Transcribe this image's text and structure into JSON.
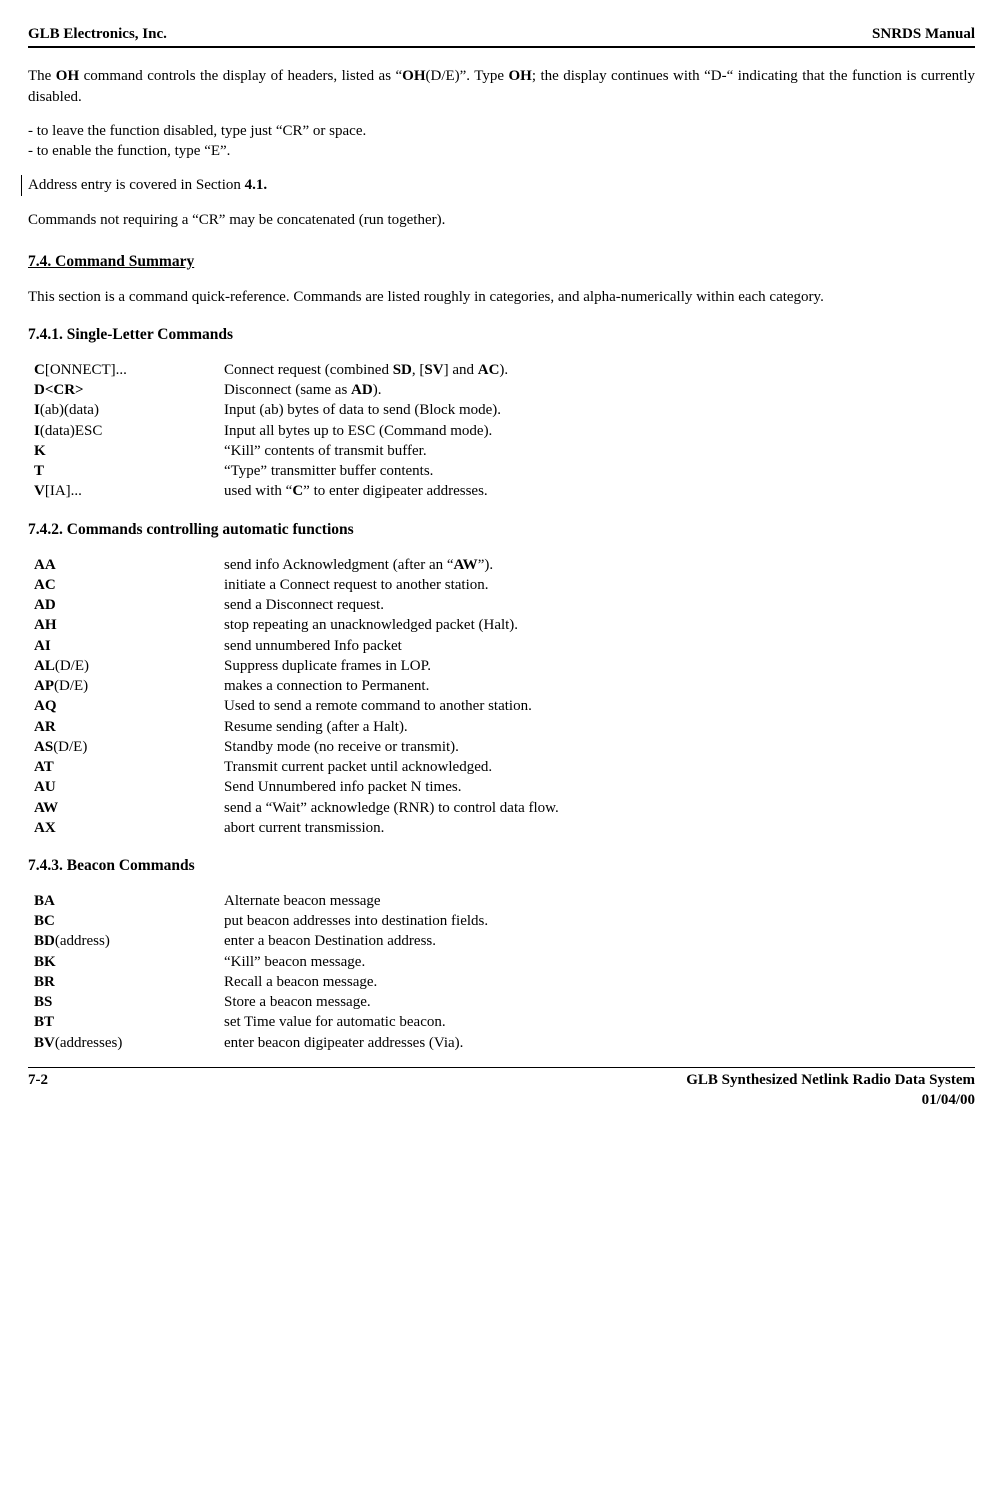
{
  "header": {
    "left": "GLB Electronics, Inc.",
    "right": "SNRDS  Manual"
  },
  "footer": {
    "left": "7-2",
    "right1": "GLB Synthesized Netlink Radio Data System",
    "right2": "01/04/00"
  },
  "intro": {
    "p1_a": "The ",
    "p1_b": "OH",
    "p1_c": " command controls the display of headers, listed as “",
    "p1_d": "OH",
    "p1_e": "(D/E)”. Type ",
    "p1_f": "OH",
    "p1_g": "; the display continues with “D-“ indicating that the function is currently disabled.",
    "l1": "- to leave the function disabled, type just “CR” or space.",
    "l2": "- to enable the function, type “E”.",
    "p2_a": "Address entry is covered in Section ",
    "p2_b": "4.1.",
    "p3": "Commands not requiring a “CR” may be concatenated (run together)."
  },
  "s74": {
    "title": "7.4. Command Summary",
    "p": "This section is a command quick-reference. Commands are listed roughly in categories, and alpha-numerically within each category."
  },
  "s741": {
    "title": "7.4.1.  Single-Letter Commands",
    "rows": [
      {
        "cmd_b": "C",
        "cmd_r": "[ONNECT]...",
        "desc_a": "Connect request (combined ",
        "desc_bold1": "SD",
        "desc_b": ", [",
        "desc_bold2": "SV",
        "desc_c": "] and ",
        "desc_bold3": "AC",
        "desc_d": ")."
      },
      {
        "cmd_b": "D<CR>",
        "cmd_r": "",
        "desc_a": "Disconnect (same as ",
        "desc_bold1": "AD",
        "desc_b": ").",
        "desc_bold2": "",
        "desc_c": "",
        "desc_bold3": "",
        "desc_d": ""
      },
      {
        "cmd_b": "I",
        "cmd_r": "(ab)(data)",
        "desc_a": "Input (ab) bytes of data to send (Block mode).",
        "desc_bold1": "",
        "desc_b": "",
        "desc_bold2": "",
        "desc_c": "",
        "desc_bold3": "",
        "desc_d": ""
      },
      {
        "cmd_b": "I",
        "cmd_r": "(data)ESC",
        "desc_a": "Input all bytes up to ESC (Command mode).",
        "desc_bold1": "",
        "desc_b": "",
        "desc_bold2": "",
        "desc_c": "",
        "desc_bold3": "",
        "desc_d": ""
      },
      {
        "cmd_b": "K",
        "cmd_r": "",
        "desc_a": "“Kill” contents of transmit buffer.",
        "desc_bold1": "",
        "desc_b": "",
        "desc_bold2": "",
        "desc_c": "",
        "desc_bold3": "",
        "desc_d": ""
      },
      {
        "cmd_b": "T",
        "cmd_r": "",
        "desc_a": "“Type” transmitter buffer contents.",
        "desc_bold1": "",
        "desc_b": "",
        "desc_bold2": "",
        "desc_c": "",
        "desc_bold3": "",
        "desc_d": ""
      },
      {
        "cmd_b": "V",
        "cmd_r": "[IA]...",
        "desc_a": "used with “",
        "desc_bold1": "C",
        "desc_b": "” to enter digipeater addresses.",
        "desc_bold2": "",
        "desc_c": "",
        "desc_bold3": "",
        "desc_d": ""
      }
    ]
  },
  "s742": {
    "title": "7.4.2. Commands controlling automatic functions",
    "rows": [
      {
        "cmd_b": "AA",
        "cmd_r": "",
        "desc_a": "send info Acknowledgment (after an “",
        "desc_bold1": "AW",
        "desc_b": "”)."
      },
      {
        "cmd_b": "AC",
        "cmd_r": "",
        "desc_a": "initiate a Connect request to another station.",
        "desc_bold1": "",
        "desc_b": ""
      },
      {
        "cmd_b": "AD",
        "cmd_r": "",
        "desc_a": "send a Disconnect request.",
        "desc_bold1": "",
        "desc_b": ""
      },
      {
        "cmd_b": "AH",
        "cmd_r": "",
        "desc_a": "stop repeating an unacknowledged packet (Halt).",
        "desc_bold1": "",
        "desc_b": ""
      },
      {
        "cmd_b": "AI",
        "cmd_r": "",
        "desc_a": "send unnumbered Info packet",
        "desc_bold1": "",
        "desc_b": ""
      },
      {
        "cmd_b": "AL",
        "cmd_r": "(D/E)",
        "desc_a": "Suppress duplicate frames in LOP.",
        "desc_bold1": "",
        "desc_b": ""
      },
      {
        "cmd_b": "AP",
        "cmd_r": "(D/E)",
        "desc_a": "makes a connection to Permanent.",
        "desc_bold1": "",
        "desc_b": ""
      },
      {
        "cmd_b": "AQ",
        "cmd_r": "",
        "desc_a": "Used to send a remote command to another station.",
        "desc_bold1": "",
        "desc_b": ""
      },
      {
        "cmd_b": "AR",
        "cmd_r": "",
        "desc_a": "Resume sending (after a Halt).",
        "desc_bold1": "",
        "desc_b": ""
      },
      {
        "cmd_b": "AS",
        "cmd_r": "(D/E)",
        "desc_a": "Standby mode (no receive or transmit).",
        "desc_bold1": "",
        "desc_b": ""
      },
      {
        "cmd_b": "AT",
        "cmd_r": "",
        "desc_a": "Transmit current packet until acknowledged.",
        "desc_bold1": "",
        "desc_b": ""
      },
      {
        "cmd_b": "AU",
        "cmd_r": "",
        "desc_a": "Send Unnumbered info packet N times.",
        "desc_bold1": "",
        "desc_b": ""
      },
      {
        "cmd_b": "AW",
        "cmd_r": "",
        "desc_a": "send a “Wait” acknowledge (RNR) to control data flow.",
        "desc_bold1": "",
        "desc_b": ""
      },
      {
        "cmd_b": "AX",
        "cmd_r": "",
        "desc_a": "abort current transmission.",
        "desc_bold1": "",
        "desc_b": ""
      }
    ]
  },
  "s743": {
    "title": "7.4.3. Beacon Commands",
    "rows": [
      {
        "cmd_b": "BA",
        "cmd_r": "",
        "desc": "Alternate beacon message"
      },
      {
        "cmd_b": "BC",
        "cmd_r": "",
        "desc": "put beacon addresses into destination fields."
      },
      {
        "cmd_b": "BD",
        "cmd_r": "(address)",
        "desc": "enter a beacon Destination address."
      },
      {
        "cmd_b": "BK",
        "cmd_r": "",
        "desc": "“Kill” beacon message."
      },
      {
        "cmd_b": "BR",
        "cmd_r": "",
        "desc": "Recall a beacon message."
      },
      {
        "cmd_b": "BS",
        "cmd_r": "",
        "desc": "Store a beacon message."
      },
      {
        "cmd_b": "BT",
        "cmd_r": "",
        "desc": "set Time value for automatic beacon."
      },
      {
        "cmd_b": "BV",
        "cmd_r": "(addresses)",
        "desc": "enter beacon digipeater addresses (Via)."
      }
    ]
  }
}
